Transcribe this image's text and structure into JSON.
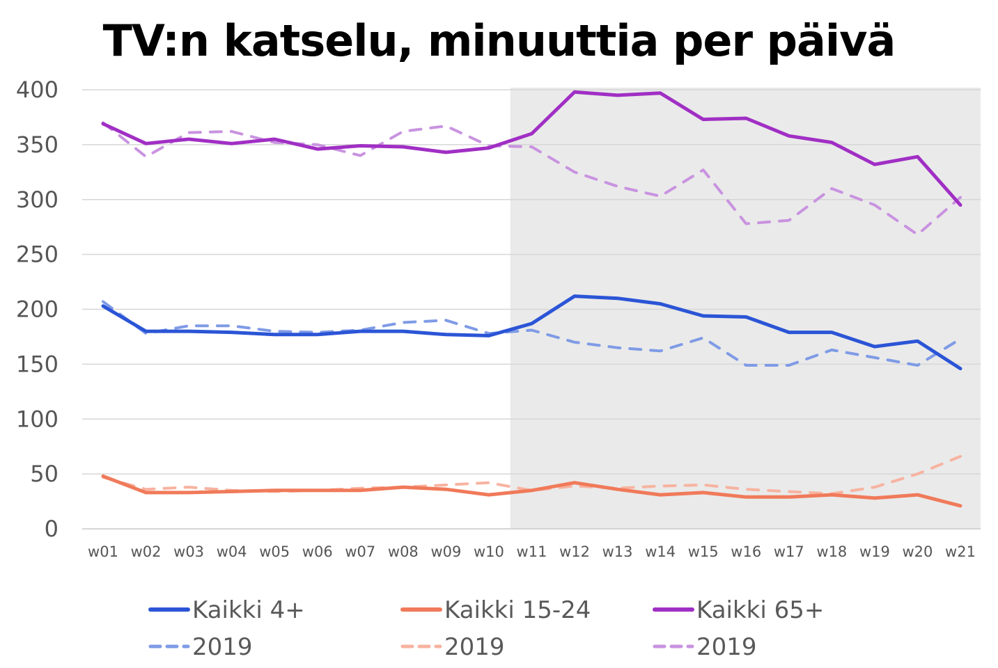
{
  "chart_data": {
    "type": "line",
    "title": "TV:n katselu, minuuttia per päivä",
    "xlabel": "",
    "ylabel": "",
    "ylim": [
      0,
      400
    ],
    "yticks": [
      0,
      50,
      100,
      150,
      200,
      250,
      300,
      350,
      400
    ],
    "grid": true,
    "highlight_region": {
      "from": "w10",
      "to": "w21",
      "color": "#eaeaea"
    },
    "categories": [
      "w01",
      "w02",
      "w03",
      "w04",
      "w05",
      "w06",
      "w07",
      "w08",
      "w09",
      "w10",
      "w11",
      "w12",
      "w13",
      "w14",
      "w15",
      "w16",
      "w17",
      "w18",
      "w19",
      "w20",
      "w21"
    ],
    "series": [
      {
        "name": "Kaikki 4+",
        "style": "solid",
        "color": "#2b55d6",
        "values": [
          203,
          180,
          180,
          179,
          177,
          177,
          180,
          180,
          177,
          176,
          187,
          212,
          210,
          205,
          194,
          193,
          179,
          179,
          166,
          171,
          146
        ]
      },
      {
        "name": "Kaikki 15-24",
        "style": "solid",
        "color": "#f07a5a",
        "values": [
          48,
          33,
          33,
          34,
          35,
          35,
          35,
          38,
          36,
          31,
          35,
          42,
          36,
          31,
          33,
          29,
          29,
          31,
          28,
          31,
          21
        ]
      },
      {
        "name": "Kaikki 65+",
        "style": "solid",
        "color": "#a02fc4",
        "values": [
          369,
          351,
          355,
          351,
          355,
          346,
          349,
          348,
          343,
          347,
          360,
          398,
          395,
          397,
          373,
          374,
          358,
          352,
          332,
          339,
          295
        ]
      },
      {
        "name": "2019",
        "style": "dashed",
        "color": "#7f9be6",
        "values": [
          207,
          178,
          185,
          185,
          180,
          179,
          181,
          188,
          190,
          178,
          181,
          170,
          165,
          162,
          174,
          149,
          149,
          163,
          156,
          149,
          173
        ]
      },
      {
        "name": "2019",
        "style": "dashed",
        "color": "#f7b3a0",
        "values": [
          47,
          36,
          38,
          35,
          34,
          35,
          37,
          38,
          40,
          42,
          35,
          39,
          37,
          39,
          40,
          36,
          34,
          32,
          38,
          50,
          66
        ]
      },
      {
        "name": "2019",
        "style": "dashed",
        "color": "#c993e0",
        "values": [
          370,
          339,
          361,
          362,
          352,
          350,
          340,
          362,
          367,
          349,
          348,
          325,
          312,
          303,
          327,
          278,
          281,
          310,
          295,
          268,
          302
        ]
      }
    ]
  },
  "legend": {
    "row1": [
      "Kaikki 4+",
      "Kaikki 15-24",
      "Kaikki 65+"
    ],
    "row2": [
      "2019",
      "2019",
      "2019"
    ]
  }
}
